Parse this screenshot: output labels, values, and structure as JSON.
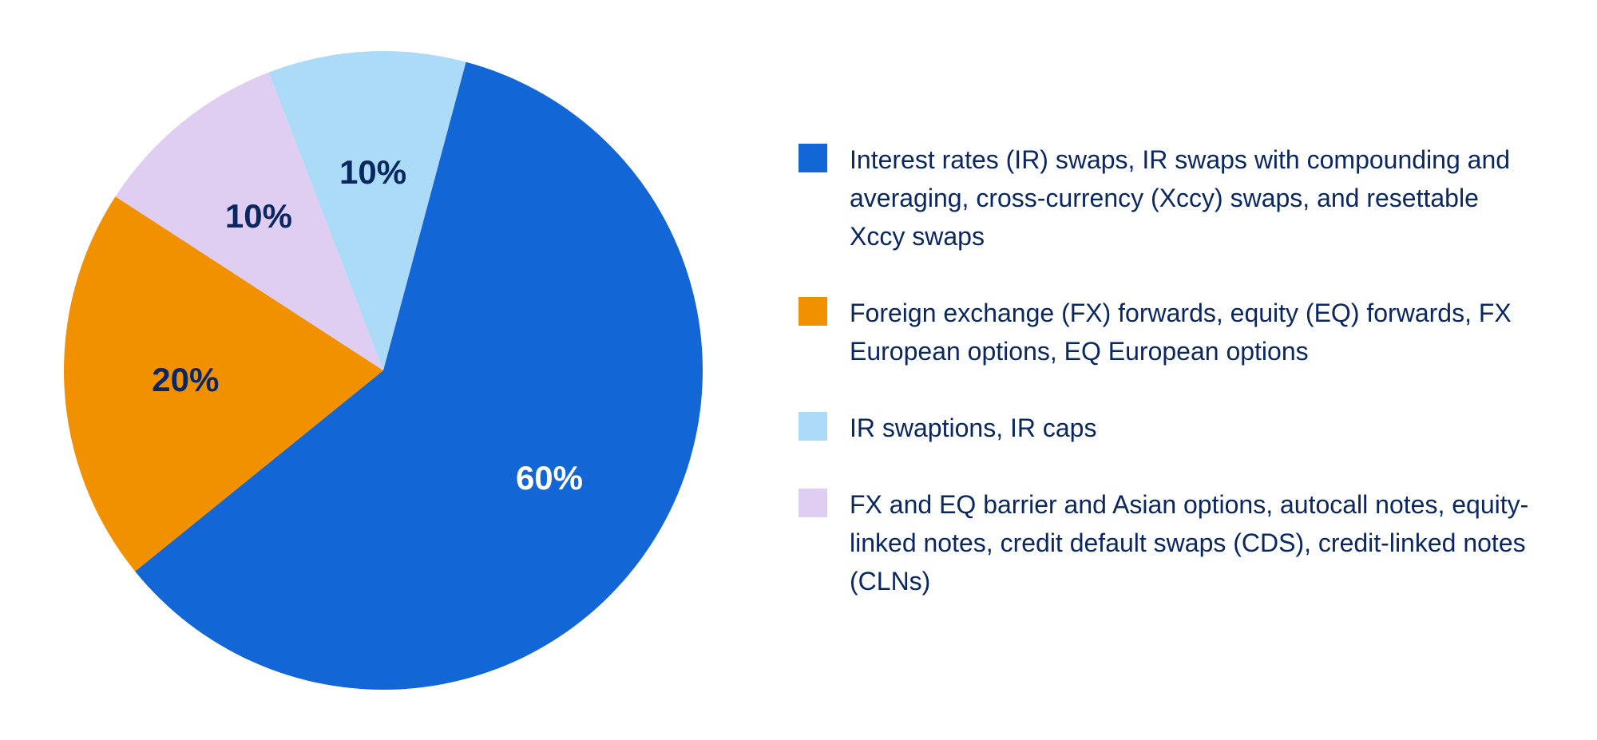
{
  "chart": {
    "type": "pie",
    "background_color": "#ffffff",
    "legend_text_color": "#0a2761",
    "legend_fontsize": 32,
    "slice_label_fontsize": 42,
    "slice_label_fontweight": 700,
    "start_angle_deg": 15,
    "direction": "clockwise",
    "slices": [
      {
        "id": "ir-swaps",
        "value": 60,
        "percent_label": "60%",
        "color": "#1366d6",
        "label_color": "#ffffff",
        "legend": "Interest rates (IR) swaps, IR swaps with compounding and averaging, cross-currency (Xccy) swaps, and resettable Xccy swaps"
      },
      {
        "id": "fx-forwards",
        "value": 20,
        "percent_label": "20%",
        "color": "#f29100",
        "label_color": "#0a2761",
        "legend": "Foreign exchange (FX) forwards, equity (EQ) forwards, FX European options, EQ European options"
      },
      {
        "id": "fx-barrier",
        "value": 10,
        "percent_label": "10%",
        "color": "#dfcdf2",
        "label_color": "#0a2761",
        "legend": "FX and EQ barrier and Asian options, autocall notes, equity-linked notes, credit default swaps (CDS), credit-linked notes (CLNs)"
      },
      {
        "id": "ir-swaptions",
        "value": 10,
        "percent_label": "10%",
        "color": "#abdbf7",
        "label_color": "#0a2761",
        "legend": "IR swaptions, IR caps"
      }
    ],
    "legend_order": [
      "ir-swaps",
      "fx-forwards",
      "ir-swaptions",
      "fx-barrier"
    ]
  }
}
